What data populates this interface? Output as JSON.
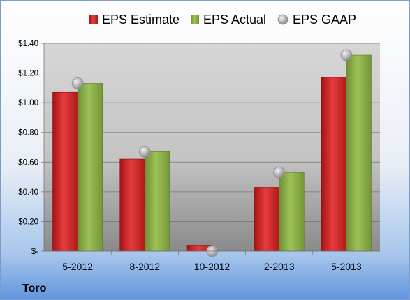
{
  "company": "Toro",
  "colors": {
    "estimate": "#d42a2a",
    "actual": "#8db14a",
    "gaap": "#b9b9b9"
  },
  "chart_data": {
    "type": "bar",
    "categories": [
      "5-2012",
      "8-2012",
      "10-2012",
      "2-2013",
      "5-2013"
    ],
    "series": [
      {
        "name": "EPS Estimate",
        "kind": "bar",
        "values": [
          1.07,
          0.62,
          0.04,
          0.43,
          1.17
        ]
      },
      {
        "name": "EPS Actual",
        "kind": "bar",
        "values": [
          1.13,
          0.67,
          0.0,
          0.53,
          1.32
        ]
      },
      {
        "name": "EPS GAAP",
        "kind": "marker",
        "values": [
          1.13,
          0.67,
          0.0,
          0.53,
          1.32
        ]
      }
    ],
    "ylim": [
      0,
      1.4
    ],
    "yticks": [
      0,
      0.2,
      0.4,
      0.6,
      0.8,
      1.0,
      1.2,
      1.4
    ],
    "ytick_labels": [
      "$-",
      "$0.20",
      "$0.40",
      "$0.60",
      "$0.80",
      "$1.00",
      "$1.20",
      "$1.40"
    ],
    "grid": true,
    "legend": "top"
  }
}
